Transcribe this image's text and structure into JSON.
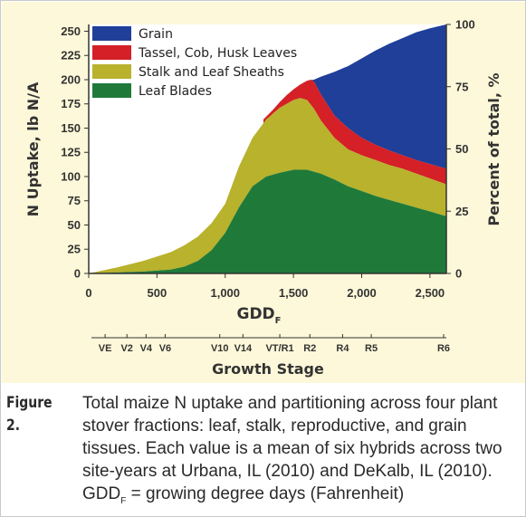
{
  "chart_data": {
    "type": "area",
    "stacked": true,
    "xlabel": "GDD",
    "xlabel_sub": "F",
    "ylabel": "N Uptake, lb N/A",
    "ylabel_right": "Percent of total, %",
    "xlim": [
      0,
      2620
    ],
    "ylim": [
      0,
      257
    ],
    "ylim_right": [
      0,
      100
    ],
    "x_ticks": [
      "0",
      "500",
      "1,000",
      "1,500",
      "2,000",
      "2,500"
    ],
    "x_tick_values": [
      0,
      500,
      1000,
      1500,
      2000,
      2500
    ],
    "y_ticks": [
      "0",
      "25",
      "50",
      "75",
      "100",
      "125",
      "150",
      "175",
      "200",
      "225",
      "250"
    ],
    "y_tick_values": [
      0,
      25,
      50,
      75,
      100,
      125,
      150,
      175,
      200,
      225,
      250
    ],
    "y_right_ticks": [
      "0",
      "25",
      "50",
      "75",
      "100"
    ],
    "y_right_tick_values": [
      0,
      25,
      50,
      75,
      100
    ],
    "growth_stage_label": "Growth Stage",
    "growth_stages": [
      {
        "label": "VE",
        "gdd": 120
      },
      {
        "label": "V2",
        "gdd": 280
      },
      {
        "label": "V4",
        "gdd": 420
      },
      {
        "label": "V6",
        "gdd": 560
      },
      {
        "label": "V10",
        "gdd": 960
      },
      {
        "label": "V14",
        "gdd": 1130
      },
      {
        "label": "VT/R1",
        "gdd": 1400
      },
      {
        "label": "R2",
        "gdd": 1620
      },
      {
        "label": "R4",
        "gdd": 1860
      },
      {
        "label": "R5",
        "gdd": 2070
      },
      {
        "label": "R6",
        "gdd": 2600
      }
    ],
    "legend_position": "top-left",
    "series": [
      {
        "name": "Leaf Blades",
        "color": "#1f7a3a",
        "cumulative_top": {
          "x": [
            0,
            200,
            400,
            600,
            700,
            800,
            900,
            1000,
            1100,
            1200,
            1300,
            1400,
            1500,
            1600,
            1700,
            1800,
            1900,
            2000,
            2100,
            2200,
            2300,
            2400,
            2500,
            2620
          ],
          "y": [
            0,
            1,
            2,
            4,
            7,
            13,
            24,
            42,
            68,
            90,
            100,
            104,
            107,
            107,
            103,
            97,
            90,
            85,
            80,
            76,
            72,
            68,
            64,
            59
          ]
        }
      },
      {
        "name": "Stalk and Leaf Sheaths",
        "color": "#b8b22c",
        "cumulative_top": {
          "x": [
            0,
            200,
            400,
            600,
            700,
            800,
            900,
            1000,
            1100,
            1200,
            1300,
            1400,
            1500,
            1550,
            1600,
            1650,
            1700,
            1800,
            1900,
            2000,
            2100,
            2200,
            2300,
            2400,
            2500,
            2620
          ],
          "y": [
            0,
            6,
            13,
            22,
            29,
            38,
            52,
            72,
            110,
            140,
            159,
            171,
            179,
            181,
            179,
            170,
            158,
            140,
            128,
            122,
            117,
            112,
            108,
            103,
            98,
            92
          ]
        }
      },
      {
        "name": "Tassel, Cob, Husk Leaves",
        "color": "#d42026",
        "cumulative_top": {
          "x": [
            1280,
            1350,
            1400,
            1450,
            1500,
            1550,
            1600,
            1630,
            1650,
            1700,
            1800,
            1900,
            2000,
            2100,
            2200,
            2300,
            2400,
            2500,
            2620
          ],
          "y": [
            159,
            169,
            177,
            184,
            190,
            195,
            199,
            200,
            198,
            185,
            163,
            150,
            140,
            133,
            127,
            122,
            117,
            113,
            108
          ]
        }
      },
      {
        "name": "Grain",
        "color": "#1f3f99",
        "cumulative_top": {
          "x": [
            1600,
            1650,
            1700,
            1800,
            1900,
            2000,
            2100,
            2200,
            2300,
            2400,
            2500,
            2620
          ],
          "y": [
            199,
            200,
            203,
            208,
            214,
            222,
            230,
            237,
            243,
            249,
            253,
            257
          ]
        }
      }
    ],
    "legend_order": [
      "Grain",
      "Tassel, Cob, Husk Leaves",
      "Stalk and Leaf Sheaths",
      "Leaf Blades"
    ]
  },
  "caption": {
    "label": "Figure 2.",
    "text_before_sub": "Total maize N uptake and partitioning across four plant stover fractions: leaf, stalk, reproductive, and grain tissues.  Each value is a mean of six hybrids across two site-years at Urbana, IL (2010) and DeKalb, IL (2010). GDD",
    "sub": "F",
    "text_after_sub": " = growing degree days (Fahrenheit)"
  }
}
